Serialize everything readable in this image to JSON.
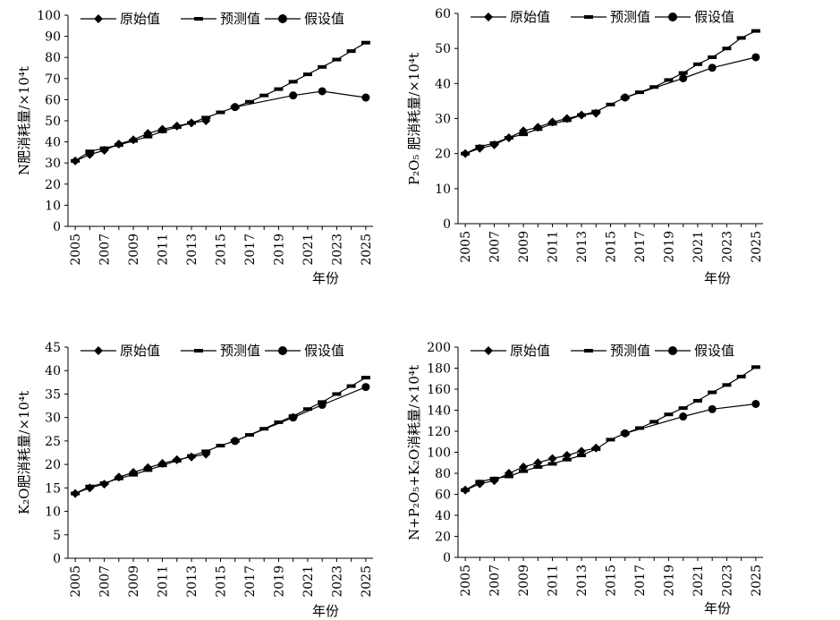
{
  "chart_data": [
    {
      "type": "line",
      "ylabel": "N肥消耗量/×10⁴t",
      "xlabel": "年份",
      "ylim": [
        0,
        100
      ],
      "yticks": [
        0,
        10,
        20,
        30,
        40,
        50,
        60,
        70,
        80,
        90,
        100
      ],
      "xticks": [
        "2005",
        "2007",
        "2009",
        "2011",
        "2013",
        "2015",
        "2017",
        "2019",
        "2021",
        "2023",
        "2025"
      ],
      "legend": "top",
      "series": [
        {
          "name": "原始值",
          "marker": "diamond",
          "x": [
            2005,
            2006,
            2007,
            2008,
            2009,
            2010,
            2011,
            2012,
            2013,
            2014
          ],
          "values": [
            31,
            34,
            36,
            39,
            41,
            44,
            46,
            47.5,
            49,
            50
          ]
        },
        {
          "name": "预测值",
          "marker": "dash",
          "x": [
            2005,
            2006,
            2007,
            2008,
            2009,
            2010,
            2011,
            2012,
            2013,
            2014,
            2015,
            2016,
            2017,
            2018,
            2019,
            2020,
            2021,
            2022,
            2023,
            2024,
            2025
          ],
          "values": [
            31,
            35.5,
            37,
            38.5,
            40.5,
            42.5,
            45,
            47,
            49,
            51.5,
            54,
            56.5,
            59,
            62,
            65,
            68.5,
            72,
            75.5,
            79,
            83,
            87
          ]
        },
        {
          "name": "假设值",
          "marker": "circle",
          "x": [
            2016,
            2020,
            2022,
            2025
          ],
          "values": [
            56.5,
            62,
            64,
            61
          ]
        }
      ]
    },
    {
      "type": "line",
      "ylabel": "P₂O₅ 肥消耗量/×10⁴t",
      "xlabel": "年份",
      "ylim": [
        0,
        60
      ],
      "yticks": [
        0,
        10,
        20,
        30,
        40,
        50,
        60
      ],
      "xticks": [
        "2005",
        "2007",
        "2009",
        "2011",
        "2013",
        "2015",
        "2017",
        "2019",
        "2021",
        "2023",
        "2025"
      ],
      "legend": "top",
      "series": [
        {
          "name": "原始值",
          "marker": "diamond",
          "x": [
            2005,
            2006,
            2007,
            2008,
            2009,
            2010,
            2011,
            2012,
            2013,
            2014
          ],
          "values": [
            20,
            21.5,
            22.5,
            24.5,
            26.5,
            27.5,
            29,
            30,
            31,
            31.5
          ]
        },
        {
          "name": "预测值",
          "marker": "dash",
          "x": [
            2005,
            2006,
            2007,
            2008,
            2009,
            2010,
            2011,
            2012,
            2013,
            2014,
            2015,
            2016,
            2017,
            2018,
            2019,
            2020,
            2021,
            2022,
            2023,
            2024,
            2025
          ],
          "values": [
            20,
            22,
            23,
            24.5,
            25.5,
            27,
            28.5,
            29.5,
            31,
            32,
            34,
            36,
            37.5,
            39,
            41,
            43,
            45.5,
            47.5,
            50,
            53,
            55
          ]
        },
        {
          "name": "假设值",
          "marker": "circle",
          "x": [
            2016,
            2020,
            2022,
            2025
          ],
          "values": [
            36,
            41.5,
            44.5,
            47.5
          ]
        }
      ]
    },
    {
      "type": "line",
      "ylabel": "K₂O肥消耗量/×10⁴t",
      "xlabel": "年份",
      "ylim": [
        0,
        45
      ],
      "yticks": [
        0,
        5,
        10,
        15,
        20,
        25,
        30,
        35,
        40,
        45
      ],
      "xticks": [
        "2005",
        "2007",
        "2009",
        "2011",
        "2013",
        "2015",
        "2017",
        "2019",
        "2021",
        "2023",
        "2025"
      ],
      "legend": "top",
      "series": [
        {
          "name": "原始值",
          "marker": "diamond",
          "x": [
            2005,
            2006,
            2007,
            2008,
            2009,
            2010,
            2011,
            2012,
            2013,
            2014
          ],
          "values": [
            13.8,
            15,
            15.8,
            17.3,
            18.3,
            19.3,
            20.2,
            21,
            21.6,
            22.2
          ]
        },
        {
          "name": "预测值",
          "marker": "dash",
          "x": [
            2005,
            2006,
            2007,
            2008,
            2009,
            2010,
            2011,
            2012,
            2013,
            2014,
            2015,
            2016,
            2017,
            2018,
            2019,
            2020,
            2021,
            2022,
            2023,
            2024,
            2025
          ],
          "values": [
            13.8,
            15.3,
            16,
            17,
            17.8,
            18.8,
            19.8,
            20.8,
            21.8,
            22.8,
            24,
            25,
            26.3,
            27.6,
            29,
            30.3,
            31.8,
            33.3,
            35,
            36.7,
            38.5
          ]
        },
        {
          "name": "假设值",
          "marker": "circle",
          "x": [
            2016,
            2020,
            2022,
            2025
          ],
          "values": [
            25,
            30,
            32.7,
            36.5
          ]
        }
      ]
    },
    {
      "type": "line",
      "ylabel": "N+P₂O₅+K₂O消耗量/×10⁴t",
      "xlabel": "年份",
      "ylim": [
        0,
        200
      ],
      "yticks": [
        0,
        20,
        40,
        60,
        80,
        100,
        120,
        140,
        160,
        180,
        200
      ],
      "xticks": [
        "2005",
        "2007",
        "2009",
        "2011",
        "2013",
        "2015",
        "2017",
        "2019",
        "2021",
        "2023",
        "2025"
      ],
      "legend": "top",
      "series": [
        {
          "name": "原始值",
          "marker": "diamond",
          "x": [
            2005,
            2006,
            2007,
            2008,
            2009,
            2010,
            2011,
            2012,
            2013,
            2014
          ],
          "values": [
            64,
            70,
            73,
            80,
            86,
            90,
            94,
            97,
            101,
            104
          ]
        },
        {
          "name": "预测值",
          "marker": "dash",
          "x": [
            2005,
            2006,
            2007,
            2008,
            2009,
            2010,
            2011,
            2012,
            2013,
            2014,
            2015,
            2016,
            2017,
            2018,
            2019,
            2020,
            2021,
            2022,
            2023,
            2024,
            2025
          ],
          "values": [
            64,
            72,
            75,
            77,
            82,
            86,
            89,
            93,
            97,
            103,
            112,
            118,
            123,
            129,
            136,
            142,
            149,
            157,
            164,
            172,
            181
          ]
        },
        {
          "name": "假设值",
          "marker": "circle",
          "x": [
            2016,
            2020,
            2022,
            2025
          ],
          "values": [
            118,
            134,
            141,
            146
          ]
        }
      ]
    }
  ]
}
